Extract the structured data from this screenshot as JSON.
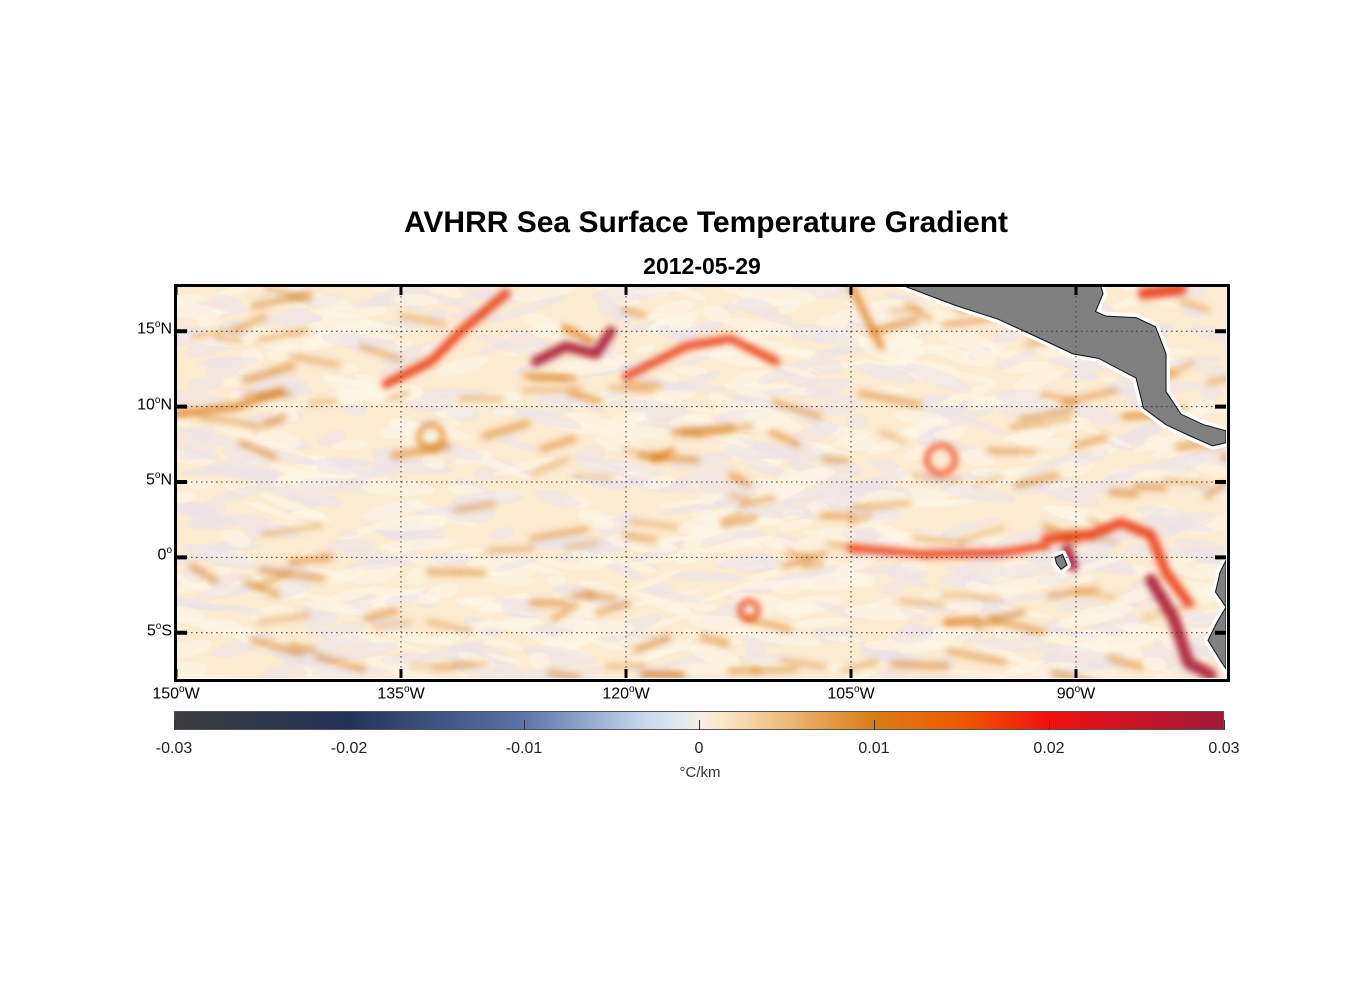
{
  "chart_data": {
    "type": "heatmap",
    "title": "AVHRR Sea Surface Temperature Gradient",
    "subtitle": "2012-05-29",
    "x_range_lon": [
      -150,
      -80
    ],
    "y_range_lat": [
      -8,
      18
    ],
    "x_ticks": [
      {
        "value": -150,
        "label": "150",
        "suffix": "W"
      },
      {
        "value": -135,
        "label": "135",
        "suffix": "W"
      },
      {
        "value": -120,
        "label": "120",
        "suffix": "W"
      },
      {
        "value": -105,
        "label": "105",
        "suffix": "W"
      },
      {
        "value": -90,
        "label": "90",
        "suffix": "W"
      }
    ],
    "y_ticks": [
      {
        "value": 15,
        "label": "15",
        "suffix": "N"
      },
      {
        "value": 10,
        "label": "10",
        "suffix": "N"
      },
      {
        "value": 5,
        "label": "5",
        "suffix": "N"
      },
      {
        "value": 0,
        "label": "0",
        "suffix": ""
      },
      {
        "value": -5,
        "label": "5",
        "suffix": "S"
      }
    ],
    "grid": "dotted",
    "colorbar": {
      "range": [
        -0.03,
        0.03
      ],
      "ticks": [
        "-0.03",
        "-0.02",
        "-0.01",
        "0",
        "0.01",
        "0.02",
        "0.03"
      ],
      "units": "°C/km",
      "colors": [
        "#3b3b3b",
        "#22335a",
        "#5a75aa",
        "#c9d9f0",
        "#f2f0ea",
        "#fde8c8",
        "#d97c14",
        "#ef5a00",
        "#f21010",
        "#a0183a"
      ]
    },
    "land_color": "#808080"
  }
}
